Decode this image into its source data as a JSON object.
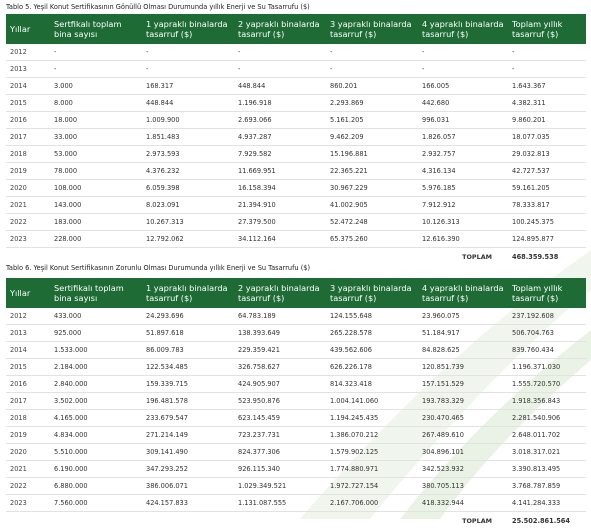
{
  "table5": {
    "caption": "Tablo 5. Yeşil Konut Sertifikasının Gönüllü Olması Durumunda yıllık Enerji ve Su Tasarrufu ($)",
    "headers": [
      "Yıllar",
      "Sertfikalı toplam bina sayısı",
      "1 yapraklı binalarda tasarruf ($)",
      "2 yapraklı binalarda tasarruf ($)",
      "3 yapraklı binalarda tasarruf ($)",
      "4 yapraklı binalarda tasarruf ($)",
      "Toplam yıllık tasarruf ($)"
    ],
    "rows": [
      [
        "2012",
        "-",
        "-",
        "-",
        "-",
        "-",
        "-"
      ],
      [
        "2013",
        "-",
        "-",
        "-",
        "-",
        "-",
        "-"
      ],
      [
        "2014",
        "3.000",
        "168.317",
        "448.844",
        "860.201",
        "166.005",
        "1.643.367"
      ],
      [
        "2015",
        "8.000",
        "448.844",
        "1.196.918",
        "2.293.869",
        "442.680",
        "4.382.311"
      ],
      [
        "2016",
        "18.000",
        "1.009.900",
        "2.693.066",
        "5.161.205",
        "996.031",
        "9.860.201"
      ],
      [
        "2017",
        "33.000",
        "1.851.483",
        "4.937.287",
        "9.462.209",
        "1.826.057",
        "18.077.035"
      ],
      [
        "2018",
        "53.000",
        "2.973.593",
        "7.929.582",
        "15.196.881",
        "2.932.757",
        "29.032.813"
      ],
      [
        "2019",
        "78.000",
        "4.376.232",
        "11.669.951",
        "22.365.221",
        "4.316.134",
        "42.727.537"
      ],
      [
        "2020",
        "108.000",
        "6.059.398",
        "16.158.394",
        "30.967.229",
        "5.976.185",
        "59.161.205"
      ],
      [
        "2021",
        "143.000",
        "8.023.091",
        "21.394.910",
        "41.002.905",
        "7.912.912",
        "78.333.817"
      ],
      [
        "2022",
        "183.000",
        "10.267.313",
        "27.379.500",
        "52.472.248",
        "10.126.313",
        "100.245.375"
      ],
      [
        "2023",
        "228.000",
        "12.792.062",
        "34.112.164",
        "65.375.260",
        "12.616.390",
        "124.895.877"
      ]
    ],
    "total_label": "TOPLAM",
    "total_value": "468.359.538"
  },
  "table6": {
    "caption": "Tablo 6. Yeşil Konut Sertifikasının Zorunlu Olması Durumunda yıllık Enerji ve Su Tasarrufu ($)",
    "headers": [
      "Yıllar",
      "Sertifikalı toplam bina sayısı",
      "1 yapraklı binalarda tasarruf ($)",
      "2 yapraklı binalarda tasarruf ($)",
      "3 yapraklı binalarda tasarruf ($)",
      "4 yapraklı binalarda tasarruf ($)",
      "Toplam yıllık tasarruf ($)"
    ],
    "rows": [
      [
        "2012",
        "433.000",
        "24.293.696",
        "64.783.189",
        "124.155.648",
        "23.960.075",
        "237.192.608"
      ],
      [
        "2013",
        "925.000",
        "51.897.618",
        "138.393.649",
        "265.228.578",
        "51.184.917",
        "506.704.763"
      ],
      [
        "2014",
        "1.533.000",
        "86.009.783",
        "229.359.421",
        "439.562.606",
        "84.828.625",
        "839.760.434"
      ],
      [
        "2015",
        "2.184.000",
        "122.534.485",
        "326.758.627",
        "626.226.178",
        "120.851.739",
        "1.196.371.030"
      ],
      [
        "2016",
        "2.840.000",
        "159.339.715",
        "424.905.907",
        "814.323.418",
        "157.151.529",
        "1.555.720.570"
      ],
      [
        "2017",
        "3.502.000",
        "196.481.578",
        "523.950.876",
        "1.004.141.060",
        "193.783.329",
        "1.918.356.843"
      ],
      [
        "2018",
        "4.165.000",
        "233.679.547",
        "623.145.459",
        "1.194.245.435",
        "230.470.465",
        "2.281.540.906"
      ],
      [
        "2019",
        "4.834.000",
        "271.214.149",
        "723.237.731",
        "1.386.070.212",
        "267.489.610",
        "2.648.011.702"
      ],
      [
        "2020",
        "5.510.000",
        "309.141.490",
        "824.377.306",
        "1.579.902.125",
        "304.896.101",
        "3.018.317.021"
      ],
      [
        "2021",
        "6.190.000",
        "347.293.252",
        "926.115.340",
        "1.774.880.971",
        "342.523.932",
        "3.390.813.495"
      ],
      [
        "2022",
        "6.880.000",
        "386.006.071",
        "1.029.349.521",
        "1.972.727.154",
        "380.705.113",
        "3.768.787.859"
      ],
      [
        "2023",
        "7.560.000",
        "424.157.833",
        "1.131.087.555",
        "2.167.706.000",
        "418.332.944",
        "4.141.284.333"
      ]
    ],
    "total_label": "TOPLAM",
    "total_value": "25.502.861.564"
  }
}
